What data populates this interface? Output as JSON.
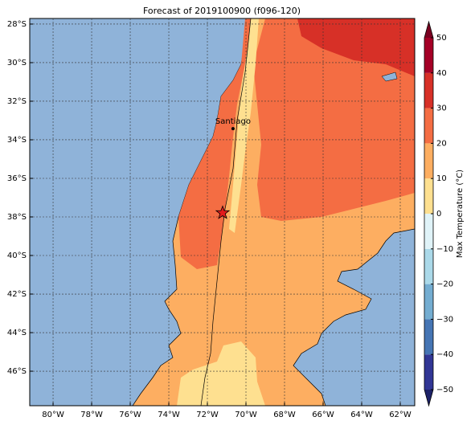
{
  "chart_data": {
    "type": "map",
    "title": "Forecast of 2019100900 (f096-120)",
    "xlim": [
      -81.21,
      -61.25
    ],
    "ylim": [
      -47.79,
      -27.71
    ],
    "xticks": [
      {
        "value": -80,
        "label": "80°W"
      },
      {
        "value": -78,
        "label": "78°W"
      },
      {
        "value": -76,
        "label": "76°W"
      },
      {
        "value": -74,
        "label": "74°W"
      },
      {
        "value": -72,
        "label": "72°W"
      },
      {
        "value": -70,
        "label": "70°W"
      },
      {
        "value": -68,
        "label": "68°W"
      },
      {
        "value": -66,
        "label": "66°W"
      },
      {
        "value": -64,
        "label": "64°W"
      },
      {
        "value": -62,
        "label": "62°W"
      }
    ],
    "yticks": [
      {
        "value": -28,
        "label": "28°S"
      },
      {
        "value": -30,
        "label": "30°S"
      },
      {
        "value": -32,
        "label": "32°S"
      },
      {
        "value": -34,
        "label": "34°S"
      },
      {
        "value": -36,
        "label": "36°S"
      },
      {
        "value": -38,
        "label": "38°S"
      },
      {
        "value": -40,
        "label": "40°S"
      },
      {
        "value": -42,
        "label": "42°S"
      },
      {
        "value": -44,
        "label": "44°S"
      },
      {
        "value": -46,
        "label": "46°S"
      }
    ],
    "grid": true,
    "annotations": [
      {
        "text": "Santiago",
        "x": -70.67,
        "y": -33.42
      }
    ],
    "marker": {
      "x": -71.21,
      "y": -37.79,
      "color": "#e31a1c"
    },
    "colorbar": {
      "label": "Max Temperature (°C)",
      "lim": [
        -50,
        50
      ],
      "ticks": [
        {
          "value": -50,
          "label": "−50"
        },
        {
          "value": -40,
          "label": "−40"
        },
        {
          "value": -30,
          "label": "−30"
        },
        {
          "value": -20,
          "label": "−20"
        },
        {
          "value": -10,
          "label": "−10"
        },
        0,
        10,
        20,
        30,
        40,
        50
      ],
      "colors": [
        "#313695",
        "#4575b4",
        "#74add1",
        "#abd9e9",
        "#e0f3f8",
        "#fee090",
        "#fdae61",
        "#f46d43",
        "#d73027",
        "#a50026"
      ],
      "extend_colors": [
        "#1d2268",
        "#7a0020"
      ]
    }
  }
}
